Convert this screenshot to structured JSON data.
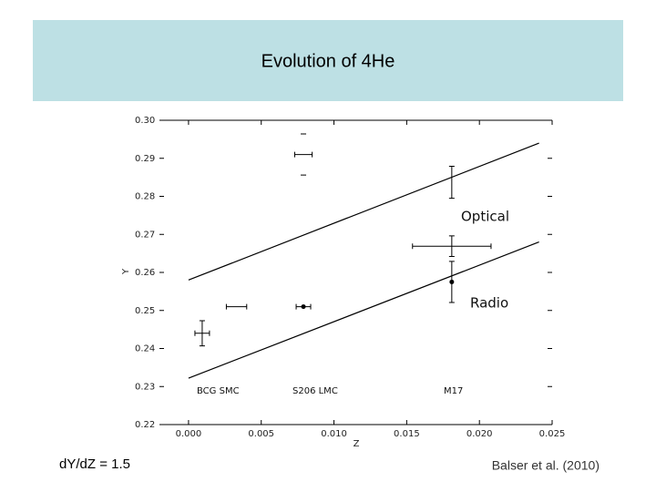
{
  "chart_data": {
    "type": "scatter",
    "title": "Evolution of 4He",
    "xlabel": "Z",
    "ylabel": "Y",
    "xlim": [
      -0.002,
      0.025
    ],
    "ylim": [
      0.22,
      0.3
    ],
    "xticks": [
      {
        "value": 0,
        "label": "0.000"
      },
      {
        "value": 0.005,
        "label": "0.005"
      },
      {
        "value": 0.01,
        "label": "0.010"
      },
      {
        "value": 0.015,
        "label": "0.015"
      },
      {
        "value": 0.02,
        "label": "0.020"
      },
      {
        "value": 0.025,
        "label": "0.025"
      }
    ],
    "yticks": [
      {
        "value": 0.22,
        "label": "0.22"
      },
      {
        "value": 0.23,
        "label": "0.23"
      },
      {
        "value": 0.24,
        "label": "0.24"
      },
      {
        "value": 0.25,
        "label": "0.25"
      },
      {
        "value": 0.26,
        "label": "0.26"
      },
      {
        "value": 0.27,
        "label": "0.27"
      },
      {
        "value": 0.28,
        "label": "0.28"
      },
      {
        "value": 0.29,
        "label": "0.29"
      },
      {
        "value": 0.3,
        "label": "0.30"
      }
    ],
    "color": "#000000",
    "lines": [
      {
        "name": "Optical",
        "x": [
          0,
          0.0241
        ],
        "y": [
          0.258,
          0.294
        ]
      },
      {
        "name": "Radio",
        "x": [
          0,
          0.0241
        ],
        "y": [
          0.2322,
          0.268
        ]
      }
    ],
    "points": [
      {
        "x": 0.00094,
        "y": 0.244,
        "xerr": 0.0005,
        "yerr": 0.0033,
        "marker": false
      },
      {
        "x": 0.0033,
        "y": 0.251,
        "xerr": 0.0007,
        "marker": false
      },
      {
        "x": 0.0079,
        "y": 0.251,
        "xerr": 0.0005,
        "marker": true
      },
      {
        "x": 0.0079,
        "y": 0.291,
        "xerr": 0.0006,
        "yerr": 0.0054,
        "marker": false,
        "caps_only": true
      },
      {
        "x": 0.0181,
        "y": 0.2837,
        "yerr": 0.0042,
        "marker": false
      },
      {
        "x": 0.0181,
        "y": 0.2575,
        "yerr": 0.0054,
        "marker": true
      },
      {
        "x": 0.0181,
        "y": 0.2669,
        "xerr": 0.0027,
        "yerr": 0.0027,
        "marker": false
      }
    ],
    "annotations": [
      "Optical",
      "Radio",
      "BCG  SMC",
      "S206  LMC",
      "M17"
    ],
    "footer_left": "dY/dZ = 1.5",
    "footer_right": "Balser et al. (2010)"
  }
}
